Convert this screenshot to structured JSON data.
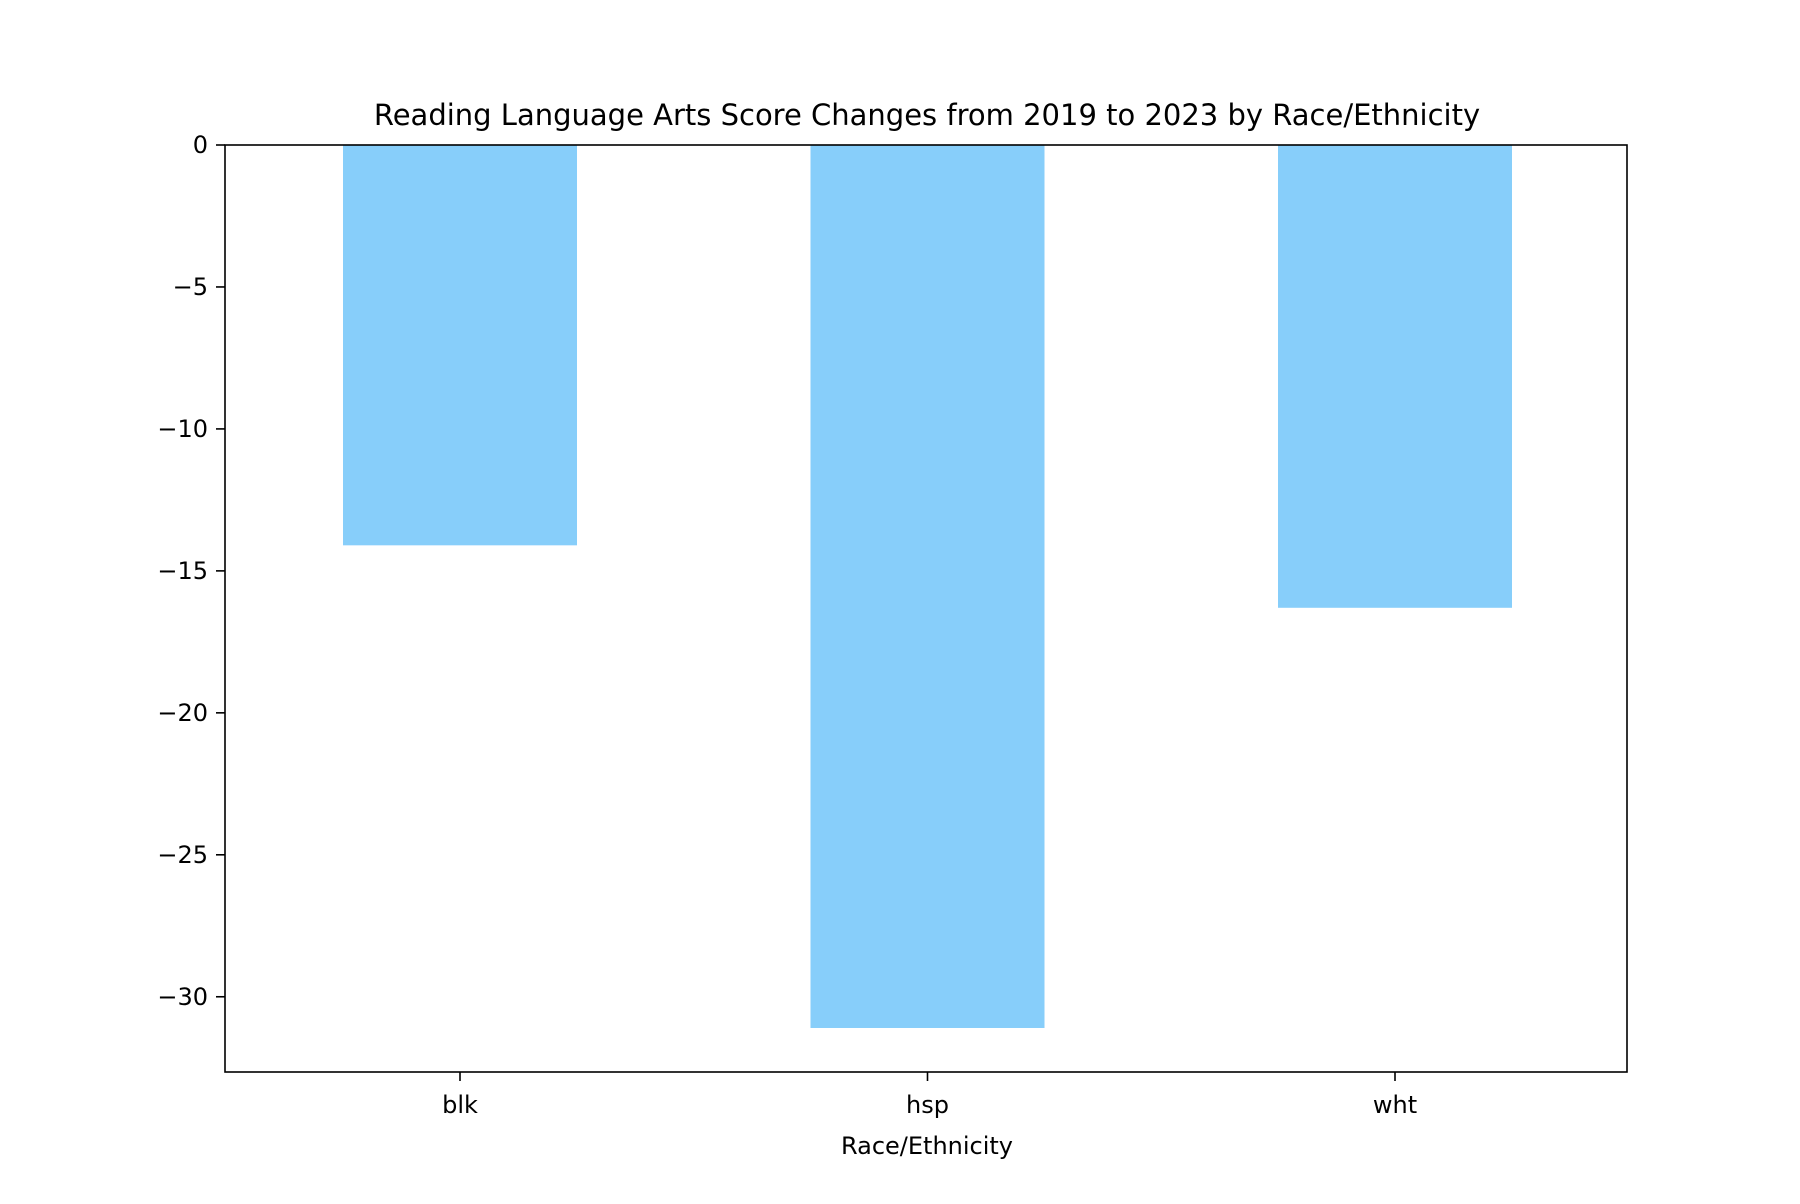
{
  "chart_data": {
    "type": "bar",
    "title": "Reading Language Arts Score Changes from 2019 to 2023 by Race/Ethnicity",
    "xlabel": "Race/Ethnicity",
    "ylabel": "",
    "categories": [
      "blk",
      "hsp",
      "wht"
    ],
    "values": [
      -14.1,
      -31.1,
      -16.3
    ],
    "ylim": [
      -32.65,
      0
    ],
    "yticks": [
      0,
      -5,
      -10,
      -15,
      -20,
      -25,
      -30
    ],
    "ytick_labels": [
      "0",
      "−5",
      "−10",
      "−15",
      "−20",
      "−25",
      "−30"
    ],
    "grid": false,
    "legend": "none",
    "bar_color": "#87CEFA"
  }
}
